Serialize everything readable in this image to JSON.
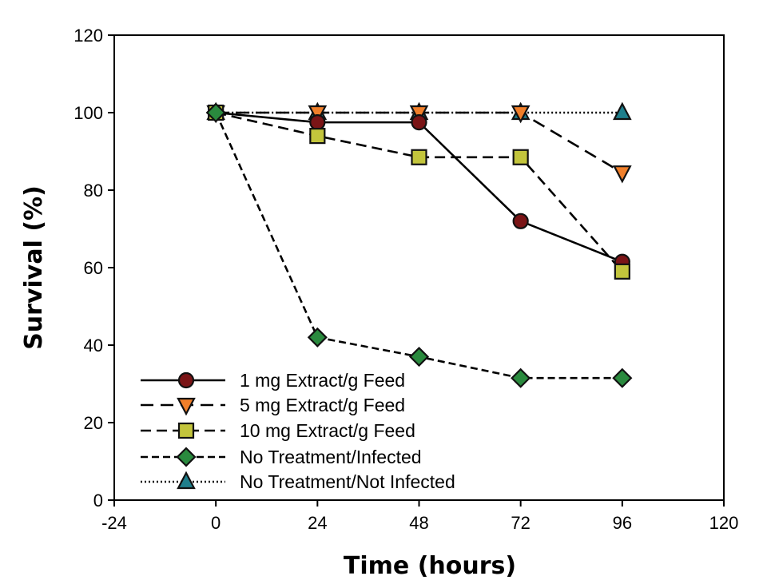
{
  "chart_data": {
    "type": "line",
    "title": "",
    "xlabel": "Time (hours)",
    "ylabel": "Survival (%)",
    "xlim": [
      -24,
      120
    ],
    "ylim": [
      0,
      120
    ],
    "xticks": [
      -24,
      0,
      24,
      48,
      72,
      96,
      120
    ],
    "yticks": [
      0,
      20,
      40,
      60,
      80,
      100,
      120
    ],
    "grid": false,
    "legend_position": "bottom-left",
    "x": [
      0,
      24,
      48,
      72,
      96
    ],
    "series": [
      {
        "name": "1 mg Extract/g Feed",
        "values": [
          100,
          97.5,
          97.5,
          72,
          61.5
        ],
        "marker": "circle",
        "line": "solid",
        "color": "#7a1416"
      },
      {
        "name": "5 mg Extract/g Feed",
        "values": [
          100,
          100,
          100,
          100,
          84.5
        ],
        "marker": "triangle-down",
        "line": "long-dash",
        "color": "#f07f2a"
      },
      {
        "name": "10 mg Extract/g Feed",
        "values": [
          100,
          94,
          88.5,
          88.5,
          59
        ],
        "marker": "square",
        "line": "dash",
        "color": "#c3c53c"
      },
      {
        "name": "No Treatment/Infected",
        "values": [
          100,
          42,
          37,
          31.5,
          31.5
        ],
        "marker": "diamond",
        "line": "short-dash",
        "color": "#2a8a3e"
      },
      {
        "name": "No Treatment/Not Infected",
        "values": [
          100,
          100,
          100,
          100,
          100
        ],
        "marker": "triangle-up",
        "line": "dotted",
        "color": "#1f7f8c"
      }
    ]
  }
}
